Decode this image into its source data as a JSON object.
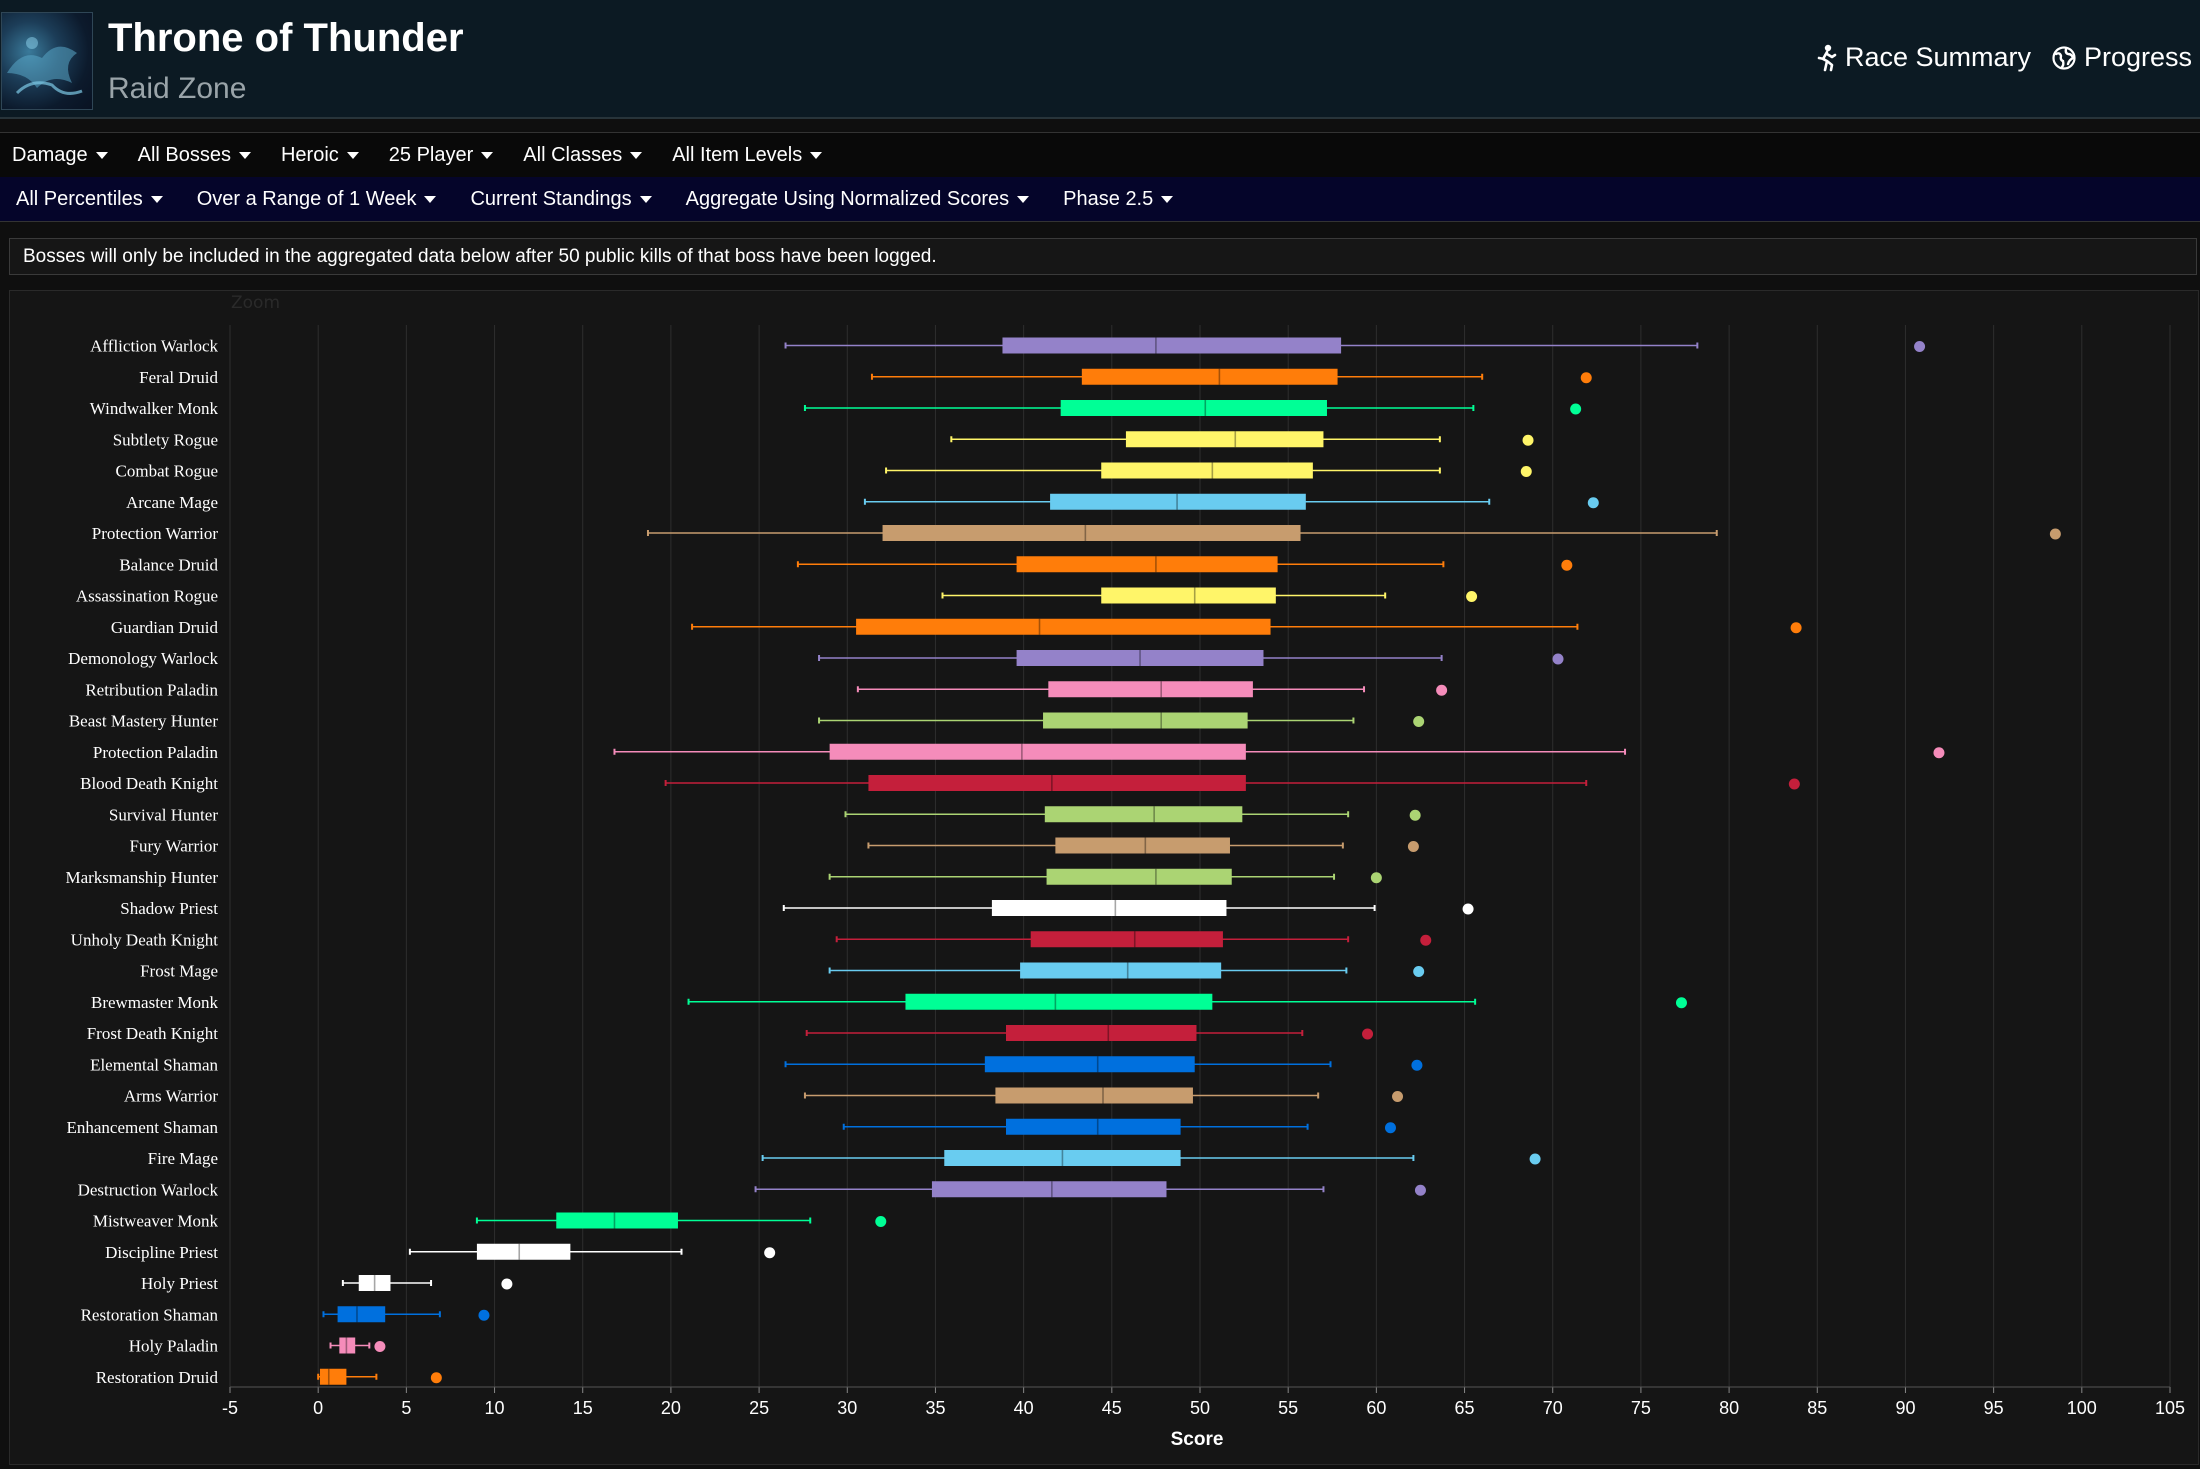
{
  "header": {
    "title": "Throne of Thunder",
    "subtitle": "Raid Zone",
    "links": [
      {
        "label": "Race Summary",
        "icon": "runner-icon"
      },
      {
        "label": "Progress",
        "icon": "globe-icon"
      }
    ]
  },
  "filters_row1": [
    "Damage",
    "All Bosses",
    "Heroic",
    "25 Player",
    "All Classes",
    "All Item Levels"
  ],
  "filters_row2": [
    "All Percentiles",
    "Over a Range of 1 Week",
    "Current Standings",
    "Aggregate Using Normalized Scores",
    "Phase 2.5"
  ],
  "notice": "Bosses will only be included in the aggregated data below after 50 public kills of that boss have been logged.",
  "chart_data": {
    "type": "boxplot",
    "zoom_label": "Zoom",
    "xlabel": "Score",
    "xlim": [
      -5,
      105
    ],
    "xticks": [
      -5,
      0,
      5,
      10,
      15,
      20,
      25,
      30,
      35,
      40,
      45,
      50,
      55,
      60,
      65,
      70,
      75,
      80,
      85,
      90,
      95,
      100,
      105
    ],
    "grid": true,
    "series": [
      {
        "name": "Affliction Warlock",
        "color": "#9482c9",
        "min": 26.5,
        "q1": 38.8,
        "median": 47.5,
        "q3": 58.0,
        "max": 78.2,
        "outlier": 90.8
      },
      {
        "name": "Feral Druid",
        "color": "#ff7d0a",
        "min": 31.4,
        "q1": 43.3,
        "median": 51.1,
        "q3": 57.8,
        "max": 66.0,
        "outlier": 71.9
      },
      {
        "name": "Windwalker Monk",
        "color": "#00ff96",
        "min": 27.6,
        "q1": 42.1,
        "median": 50.3,
        "q3": 57.2,
        "max": 65.5,
        "outlier": 71.3
      },
      {
        "name": "Subtlety Rogue",
        "color": "#fff569",
        "min": 35.9,
        "q1": 45.8,
        "median": 52.0,
        "q3": 57.0,
        "max": 63.6,
        "outlier": 68.6
      },
      {
        "name": "Combat Rogue",
        "color": "#fff569",
        "min": 32.2,
        "q1": 44.4,
        "median": 50.7,
        "q3": 56.4,
        "max": 63.6,
        "outlier": 68.5
      },
      {
        "name": "Arcane Mage",
        "color": "#69ccf0",
        "min": 31.0,
        "q1": 41.5,
        "median": 48.7,
        "q3": 56.0,
        "max": 66.4,
        "outlier": 72.3
      },
      {
        "name": "Protection Warrior",
        "color": "#c79c6e",
        "min": 18.7,
        "q1": 32.0,
        "median": 43.5,
        "q3": 55.7,
        "max": 79.3,
        "outlier": 98.5
      },
      {
        "name": "Balance Druid",
        "color": "#ff7d0a",
        "min": 27.2,
        "q1": 39.6,
        "median": 47.5,
        "q3": 54.4,
        "max": 63.8,
        "outlier": 70.8
      },
      {
        "name": "Assassination Rogue",
        "color": "#fff569",
        "min": 35.4,
        "q1": 44.4,
        "median": 49.7,
        "q3": 54.3,
        "max": 60.5,
        "outlier": 65.4
      },
      {
        "name": "Guardian Druid",
        "color": "#ff7d0a",
        "min": 21.2,
        "q1": 30.5,
        "median": 40.9,
        "q3": 54.0,
        "max": 71.4,
        "outlier": 83.8
      },
      {
        "name": "Demonology Warlock",
        "color": "#9482c9",
        "min": 28.4,
        "q1": 39.6,
        "median": 46.6,
        "q3": 53.6,
        "max": 63.7,
        "outlier": 70.3
      },
      {
        "name": "Retribution Paladin",
        "color": "#f58cba",
        "min": 30.6,
        "q1": 41.4,
        "median": 47.8,
        "q3": 53.0,
        "max": 59.3,
        "outlier": 63.7
      },
      {
        "name": "Beast Mastery Hunter",
        "color": "#abd473",
        "min": 28.4,
        "q1": 41.1,
        "median": 47.8,
        "q3": 52.7,
        "max": 58.7,
        "outlier": 62.4
      },
      {
        "name": "Protection Paladin",
        "color": "#f58cba",
        "min": 16.8,
        "q1": 29.0,
        "median": 39.9,
        "q3": 52.6,
        "max": 74.1,
        "outlier": 91.9
      },
      {
        "name": "Blood Death Knight",
        "color": "#c41f3b",
        "min": 19.7,
        "q1": 31.2,
        "median": 41.6,
        "q3": 52.6,
        "max": 71.9,
        "outlier": 83.7
      },
      {
        "name": "Survival Hunter",
        "color": "#abd473",
        "min": 29.9,
        "q1": 41.2,
        "median": 47.4,
        "q3": 52.4,
        "max": 58.4,
        "outlier": 62.2
      },
      {
        "name": "Fury Warrior",
        "color": "#c79c6e",
        "min": 31.2,
        "q1": 41.8,
        "median": 46.9,
        "q3": 51.7,
        "max": 58.1,
        "outlier": 62.1
      },
      {
        "name": "Marksmanship Hunter",
        "color": "#abd473",
        "min": 29.0,
        "q1": 41.3,
        "median": 47.5,
        "q3": 51.8,
        "max": 57.6,
        "outlier": 60.0
      },
      {
        "name": "Shadow Priest",
        "color": "#ffffff",
        "min": 26.4,
        "q1": 38.2,
        "median": 45.2,
        "q3": 51.5,
        "max": 59.9,
        "outlier": 65.2
      },
      {
        "name": "Unholy Death Knight",
        "color": "#c41f3b",
        "min": 29.4,
        "q1": 40.4,
        "median": 46.3,
        "q3": 51.3,
        "max": 58.4,
        "outlier": 62.8
      },
      {
        "name": "Frost Mage",
        "color": "#69ccf0",
        "min": 29.0,
        "q1": 39.8,
        "median": 45.9,
        "q3": 51.2,
        "max": 58.3,
        "outlier": 62.4
      },
      {
        "name": "Brewmaster Monk",
        "color": "#00ff96",
        "min": 21.0,
        "q1": 33.3,
        "median": 41.8,
        "q3": 50.7,
        "max": 65.6,
        "outlier": 77.3
      },
      {
        "name": "Frost Death Knight",
        "color": "#c41f3b",
        "min": 27.7,
        "q1": 39.0,
        "median": 44.8,
        "q3": 49.8,
        "max": 55.8,
        "outlier": 59.5
      },
      {
        "name": "Elemental Shaman",
        "color": "#0070de",
        "min": 26.5,
        "q1": 37.8,
        "median": 44.2,
        "q3": 49.7,
        "max": 57.4,
        "outlier": 62.3
      },
      {
        "name": "Arms Warrior",
        "color": "#c79c6e",
        "min": 27.6,
        "q1": 38.4,
        "median": 44.5,
        "q3": 49.6,
        "max": 56.7,
        "outlier": 61.2
      },
      {
        "name": "Enhancement Shaman",
        "color": "#0070de",
        "min": 29.8,
        "q1": 39.0,
        "median": 44.2,
        "q3": 48.9,
        "max": 56.1,
        "outlier": 60.8
      },
      {
        "name": "Fire Mage",
        "color": "#69ccf0",
        "min": 25.2,
        "q1": 35.5,
        "median": 42.2,
        "q3": 48.9,
        "max": 62.1,
        "outlier": 69.0
      },
      {
        "name": "Destruction Warlock",
        "color": "#9482c9",
        "min": 24.8,
        "q1": 34.8,
        "median": 41.6,
        "q3": 48.1,
        "max": 57.0,
        "outlier": 62.5
      },
      {
        "name": "Mistweaver Monk",
        "color": "#00ff96",
        "min": 9.0,
        "q1": 13.5,
        "median": 16.8,
        "q3": 20.4,
        "max": 27.9,
        "outlier": 31.9
      },
      {
        "name": "Discipline Priest",
        "color": "#ffffff",
        "min": 5.2,
        "q1": 9.0,
        "median": 11.4,
        "q3": 14.3,
        "max": 20.6,
        "outlier": 25.6
      },
      {
        "name": "Holy Priest",
        "color": "#ffffff",
        "min": 1.4,
        "q1": 2.3,
        "median": 3.2,
        "q3": 4.1,
        "max": 6.4,
        "outlier": 10.7
      },
      {
        "name": "Restoration Shaman",
        "color": "#0070de",
        "min": 0.3,
        "q1": 1.1,
        "median": 2.2,
        "q3": 3.8,
        "max": 6.9,
        "outlier": 9.4
      },
      {
        "name": "Holy Paladin",
        "color": "#f58cba",
        "min": 0.7,
        "q1": 1.2,
        "median": 1.6,
        "q3": 2.1,
        "max": 2.9,
        "outlier": 3.5
      },
      {
        "name": "Restoration Druid",
        "color": "#ff7d0a",
        "min": 0.0,
        "q1": 0.1,
        "median": 0.6,
        "q3": 1.6,
        "max": 3.3,
        "outlier": 6.7
      }
    ]
  }
}
